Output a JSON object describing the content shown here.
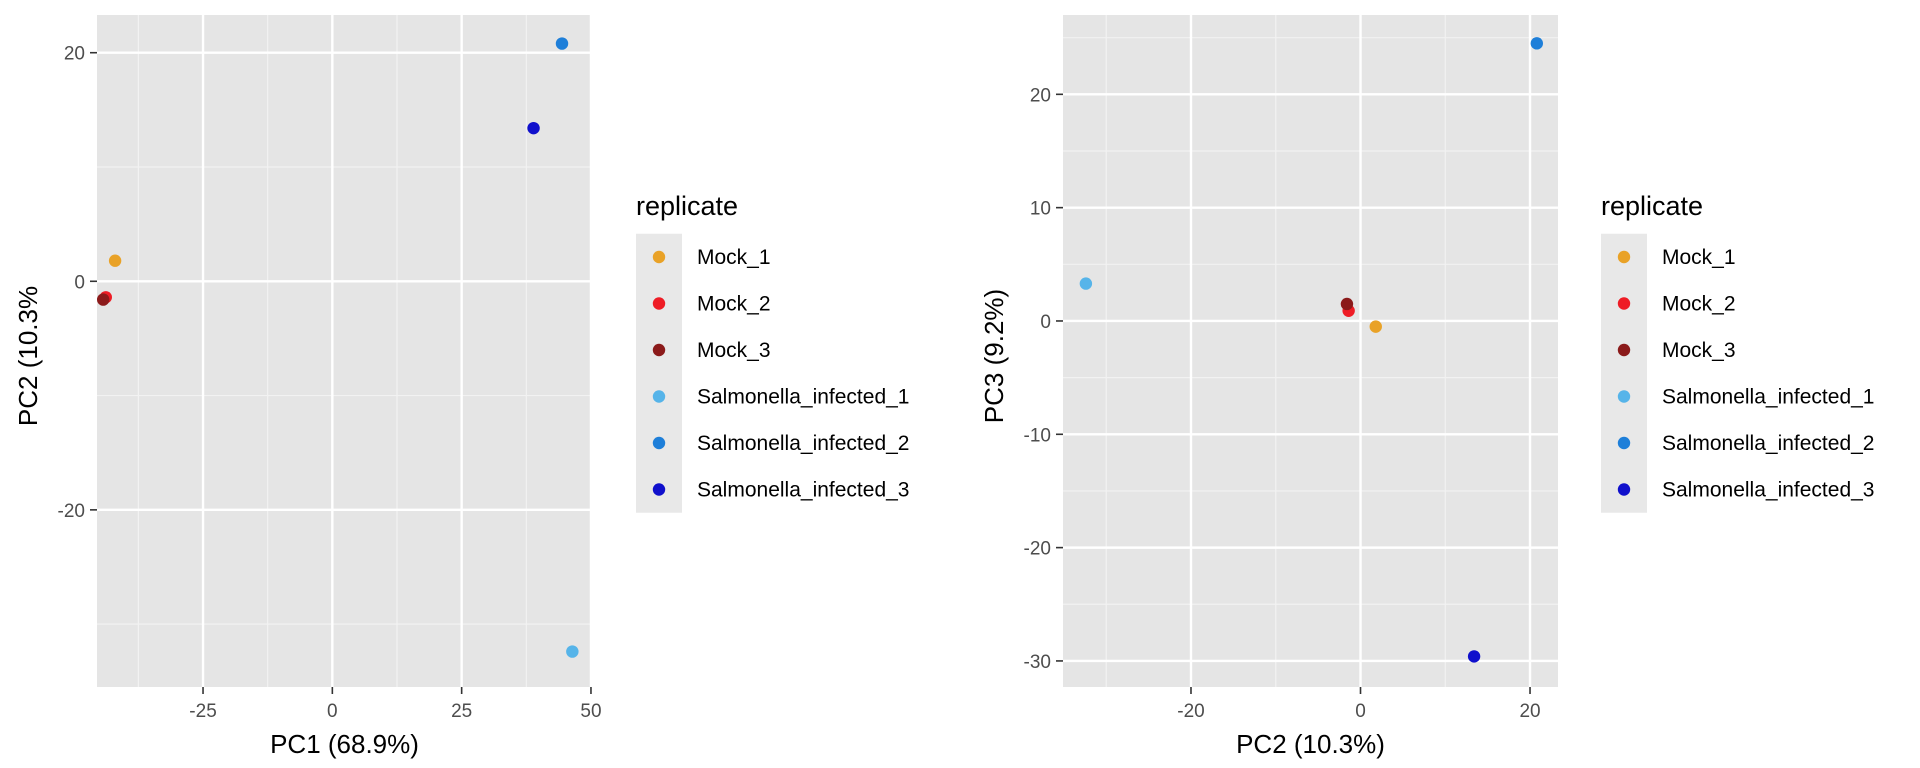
{
  "chart_data": [
    {
      "type": "scatter",
      "xlabel": "PC1 (68.9%)",
      "ylabel": "PC2 (10.3%",
      "xlim": [
        -45.5,
        50.2
      ],
      "ylim": [
        -35.5,
        23.3
      ],
      "xticks": [
        -25,
        0,
        25,
        50
      ],
      "xtick_labels": [
        "-25",
        "0",
        "25",
        "50"
      ],
      "yticks": [
        -20,
        0,
        20
      ],
      "ytick_labels": [
        "-20",
        "0",
        "20"
      ],
      "grid": true,
      "legend_title": "replicate",
      "legend_position": "right",
      "series": [
        {
          "name": "Mock_1",
          "color": "#E9A227",
          "points": [
            {
              "x": -42.0,
              "y": 1.8
            }
          ]
        },
        {
          "name": "Mock_2",
          "color": "#EE1C25",
          "points": [
            {
              "x": -43.8,
              "y": -1.4
            }
          ]
        },
        {
          "name": "Mock_3",
          "color": "#8B1A1A",
          "points": [
            {
              "x": -44.3,
              "y": -1.6
            }
          ]
        },
        {
          "name": "Salmonella_infected_1",
          "color": "#56B4E9",
          "points": [
            {
              "x": 46.4,
              "y": -32.4
            }
          ]
        },
        {
          "name": "Salmonella_infected_2",
          "color": "#1E7FD9",
          "points": [
            {
              "x": 44.4,
              "y": 20.8
            }
          ]
        },
        {
          "name": "Salmonella_infected_3",
          "color": "#1010CC",
          "points": [
            {
              "x": 38.9,
              "y": 13.4
            }
          ]
        }
      ]
    },
    {
      "type": "scatter",
      "xlabel": "PC2 (10.3%)",
      "ylabel": "PC3 (9.2%)",
      "xlim": [
        -35.1,
        23.3
      ],
      "ylim": [
        -32.3,
        27.0
      ],
      "xticks": [
        -20,
        0,
        20
      ],
      "xtick_labels": [
        "-20",
        "0",
        "20"
      ],
      "yticks": [
        -30,
        -20,
        -10,
        0,
        10,
        20
      ],
      "ytick_labels": [
        "-30",
        "-20",
        "-10",
        "0",
        "10",
        "20"
      ],
      "grid": true,
      "legend_title": "replicate",
      "legend_position": "right",
      "series": [
        {
          "name": "Mock_1",
          "color": "#E9A227",
          "points": [
            {
              "x": 1.8,
              "y": -0.5
            }
          ]
        },
        {
          "name": "Mock_2",
          "color": "#EE1C25",
          "points": [
            {
              "x": -1.4,
              "y": 0.9
            }
          ]
        },
        {
          "name": "Mock_3",
          "color": "#8B1A1A",
          "points": [
            {
              "x": -1.6,
              "y": 1.5
            }
          ]
        },
        {
          "name": "Salmonella_infected_1",
          "color": "#56B4E9",
          "points": [
            {
              "x": -32.4,
              "y": 3.3
            }
          ]
        },
        {
          "name": "Salmonella_infected_2",
          "color": "#1E7FD9",
          "points": [
            {
              "x": 20.8,
              "y": 24.5
            }
          ]
        },
        {
          "name": "Salmonella_infected_3",
          "color": "#1010CC",
          "points": [
            {
              "x": 13.4,
              "y": -29.6
            }
          ]
        }
      ]
    }
  ]
}
